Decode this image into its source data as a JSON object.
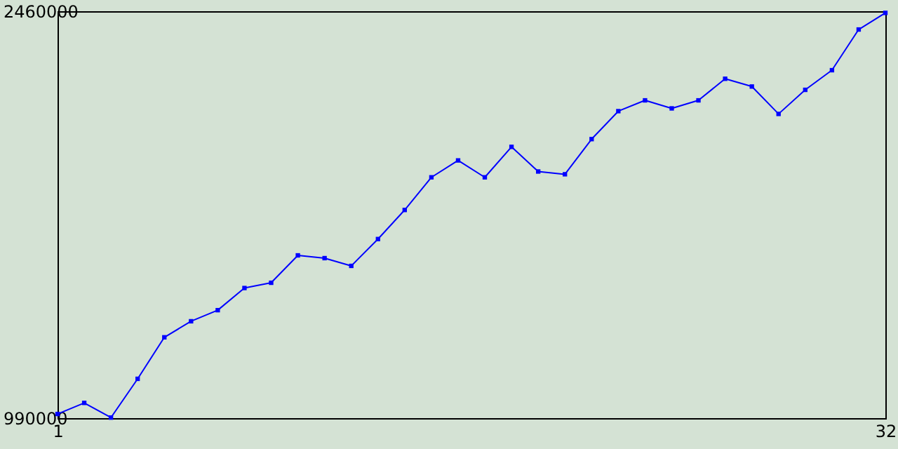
{
  "chart_data": {
    "type": "line",
    "x": [
      1,
      2,
      3,
      4,
      5,
      6,
      7,
      8,
      9,
      10,
      11,
      12,
      13,
      14,
      15,
      16,
      17,
      18,
      19,
      20,
      21,
      22,
      23,
      24,
      25,
      26,
      27,
      28,
      29,
      30,
      31,
      32
    ],
    "series": [
      {
        "color": "#0000ff",
        "values": [
          1005000,
          1045000,
          992000,
          1132000,
          1282000,
          1340000,
          1380000,
          1460000,
          1479000,
          1578000,
          1568000,
          1540000,
          1637000,
          1742000,
          1860000,
          1921000,
          1860000,
          1970000,
          1881000,
          1871000,
          1998000,
          2099000,
          2138000,
          2109000,
          2138000,
          2216000,
          2188000,
          2089000,
          2176000,
          2247000,
          2394000,
          2454000
        ]
      }
    ],
    "xlim": [
      1,
      32
    ],
    "xticks": [
      1,
      32
    ],
    "ylim": [
      990000,
      2460000
    ],
    "yticks": [
      990000,
      2460000
    ],
    "marker": "square",
    "grid": false
  }
}
